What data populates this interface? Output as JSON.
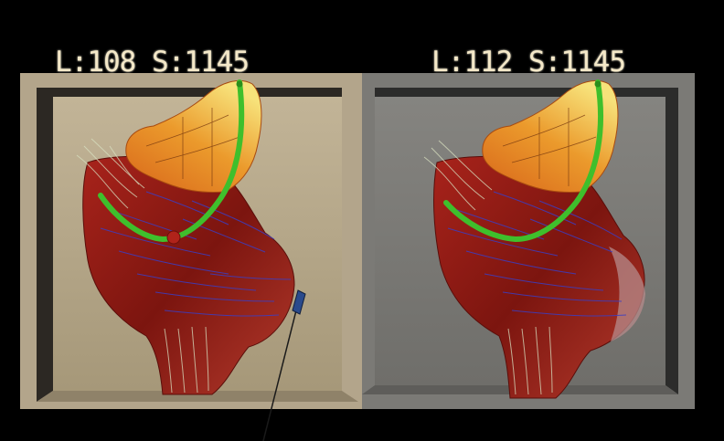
{
  "viewports": {
    "left": {
      "label": "L:108 S:1145",
      "box_color": "#b3a58b",
      "tool": "needle-probe"
    },
    "right": {
      "label": "L:112 S:1145",
      "box_color": "#7b7a76"
    }
  },
  "colors": {
    "background": "#000000",
    "label": "#f4e8c8",
    "ventricle": "#8e1a14",
    "atrium_orange": "#e0791c",
    "atrium_yellow": "#f3d05c",
    "catheter_path": "#3fbf2c",
    "streamline_blue": "#3a3ec4",
    "streamline_pale": "#d8e0c0"
  },
  "icons": {
    "probe": "needle-icon",
    "catheter": "catheter-path-icon"
  }
}
